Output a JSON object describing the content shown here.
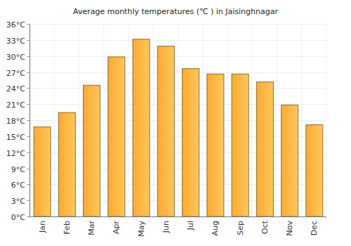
{
  "chart_data": {
    "type": "bar",
    "title": "Average monthly temperatures (℃ ) in Jaisinghnagar",
    "categories": [
      "Jan",
      "Feb",
      "Mar",
      "Apr",
      "May",
      "Jun",
      "Jul",
      "Aug",
      "Sep",
      "Oct",
      "Nov",
      "Dec"
    ],
    "values": [
      16.8,
      19.5,
      24.6,
      29.9,
      33.2,
      31.9,
      27.7,
      26.7,
      26.7,
      25.2,
      20.9,
      17.2
    ],
    "color": "#fba932",
    "ylim": [
      0,
      36
    ],
    "yticks": [
      {
        "value": 0,
        "label": "0°C"
      },
      {
        "value": 3,
        "label": "3°C"
      },
      {
        "value": 6,
        "label": "6°C"
      },
      {
        "value": 9,
        "label": "9°C"
      },
      {
        "value": 12,
        "label": "12°C"
      },
      {
        "value": 15,
        "label": "15°C"
      },
      {
        "value": 18,
        "label": "18°C"
      },
      {
        "value": 21,
        "label": "21°C"
      },
      {
        "value": 24,
        "label": "24°C"
      },
      {
        "value": 27,
        "label": "27°C"
      },
      {
        "value": 30,
        "label": "30°C"
      },
      {
        "value": 33,
        "label": "33°C"
      },
      {
        "value": 36,
        "label": "36°C"
      }
    ],
    "grid": true
  }
}
